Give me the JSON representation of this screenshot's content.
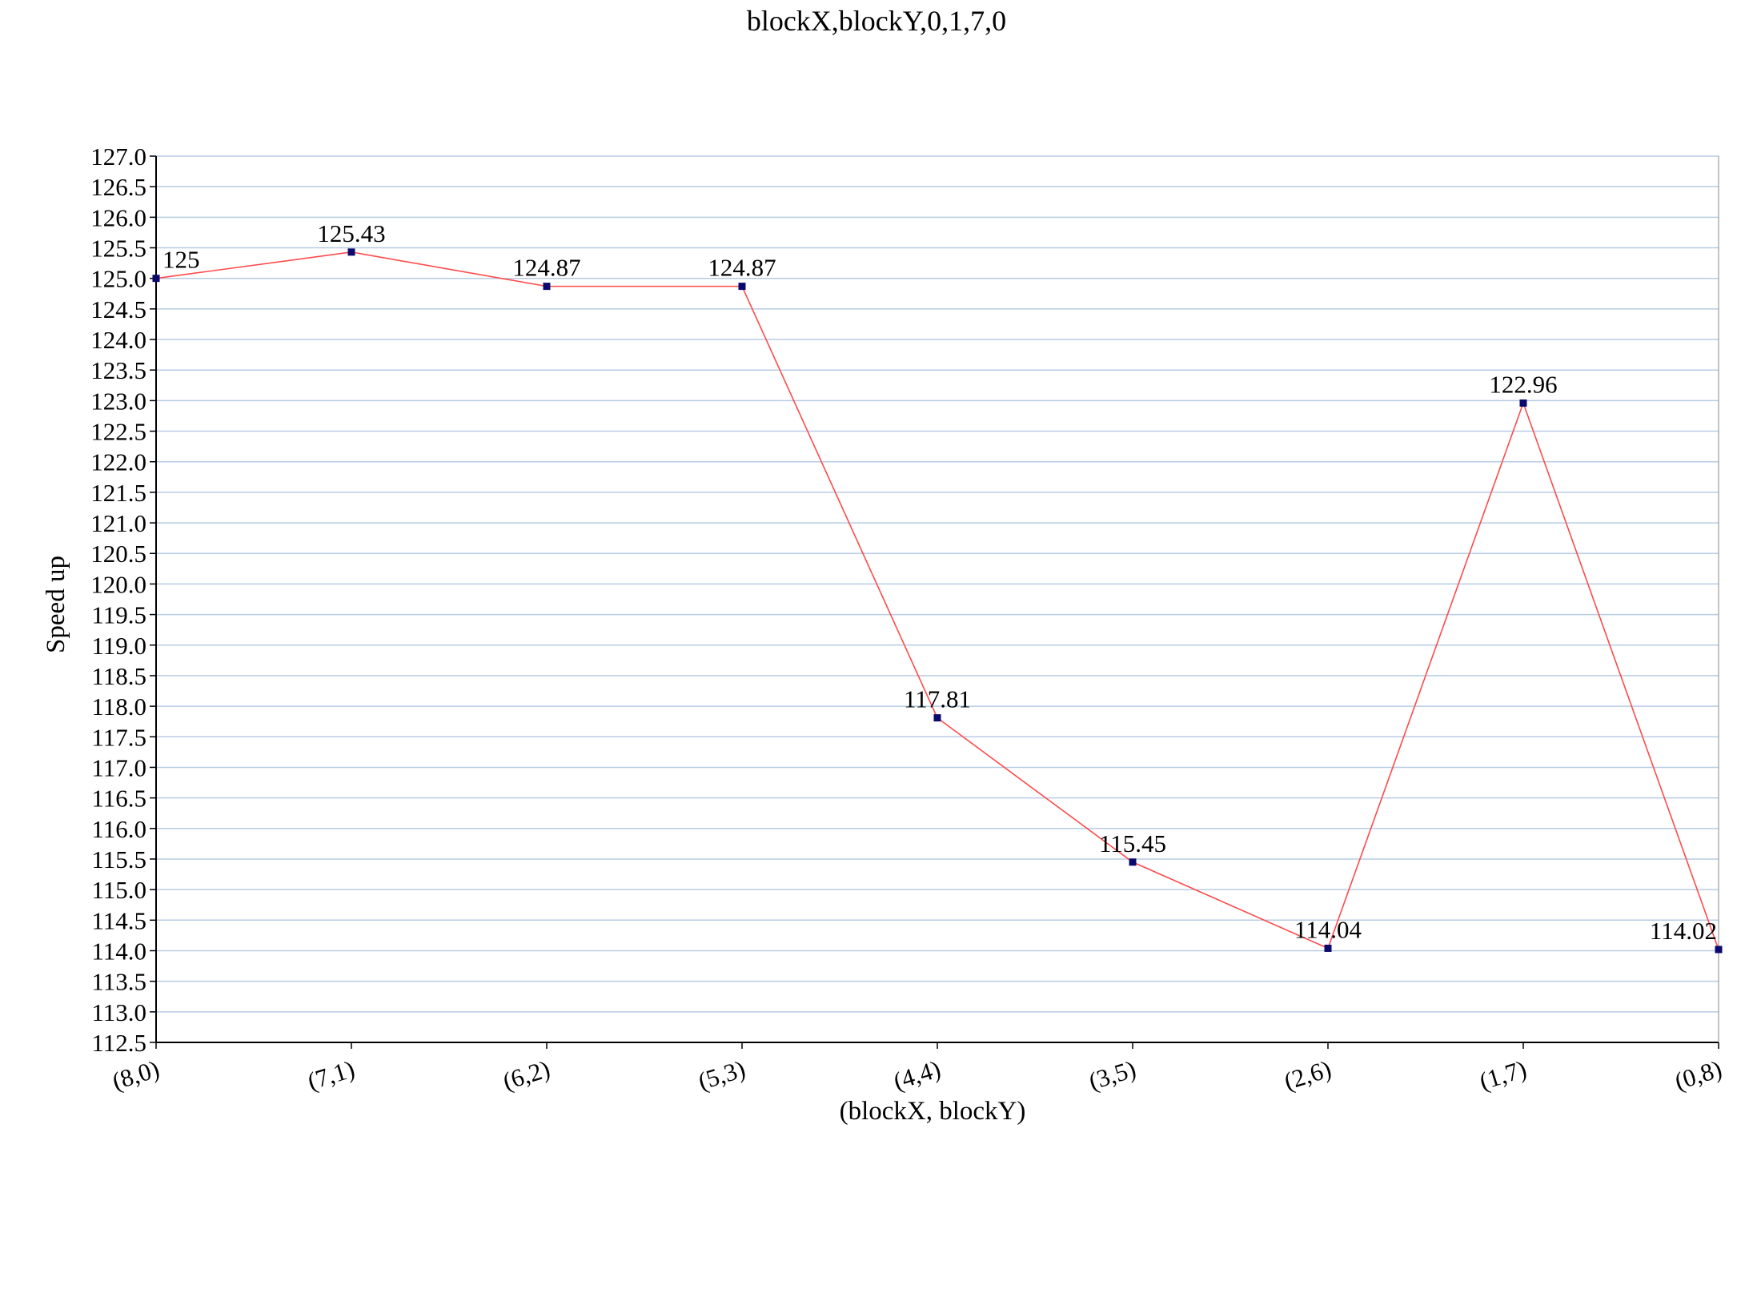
{
  "chart_data": {
    "type": "line",
    "title": "blockX,blockY,0,1,7,0",
    "xlabel": "(blockX, blockY)",
    "ylabel": "Speed up",
    "categories": [
      "(8,0)",
      "(7,1)",
      "(6,2)",
      "(5,3)",
      "(4,4)",
      "(3,5)",
      "(2,6)",
      "(1,7)",
      "(0,8)"
    ],
    "series": [
      {
        "values": [
          125,
          125.43,
          124.87,
          124.87,
          117.81,
          115.45,
          114.04,
          122.96,
          114.02
        ],
        "labels": [
          "125",
          "125.43",
          "124.87",
          "124.87",
          "117.81",
          "115.45",
          "114.04",
          "122.96",
          "114.02"
        ],
        "line_color": "#ff4a4a",
        "marker_color": "#0a0a6e"
      }
    ],
    "ylim": [
      112.5,
      127.0
    ],
    "ytick_step": 0.5,
    "yticks": [
      "112.5",
      "113.0",
      "113.5",
      "114.0",
      "114.5",
      "115.0",
      "115.5",
      "116.0",
      "116.5",
      "117.0",
      "117.5",
      "118.0",
      "118.5",
      "119.0",
      "119.5",
      "120.0",
      "120.5",
      "121.0",
      "121.5",
      "122.0",
      "122.5",
      "123.0",
      "123.5",
      "124.0",
      "124.5",
      "125.0",
      "125.5",
      "126.0",
      "126.5",
      "127.0"
    ],
    "grid": true,
    "grid_color": "#b8cce4",
    "legend": "none"
  }
}
